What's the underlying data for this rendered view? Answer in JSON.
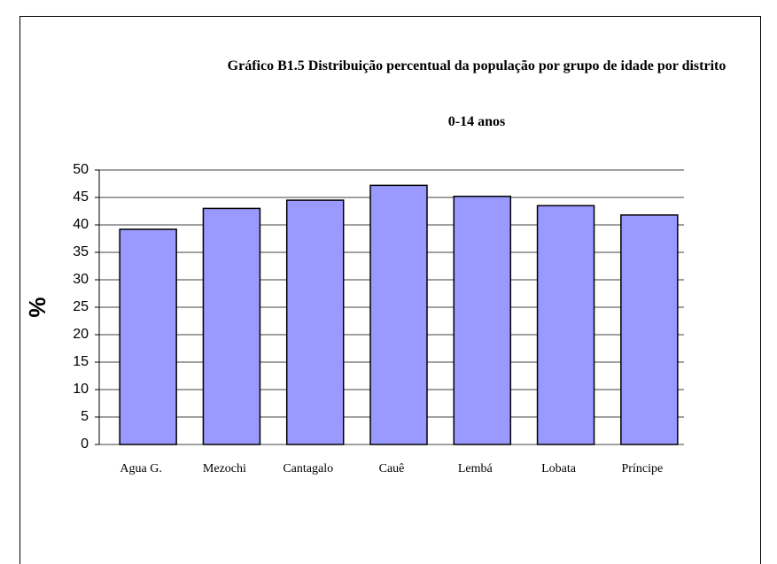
{
  "chart_data": {
    "type": "bar",
    "title": "Gráfico B1.5 Distribuição percentual da população por grupo de idade por distrito",
    "subtitle": "0-14 anos",
    "y_label": "%",
    "categories": [
      "Agua G.",
      "Mezochi",
      "Cantagalo",
      "Cauê",
      "Lembá",
      "Lobata",
      "Príncipe"
    ],
    "values": [
      39.2,
      43.0,
      44.5,
      47.2,
      45.2,
      43.5,
      41.8
    ],
    "color": "#9999ff",
    "ylim": [
      0,
      50
    ],
    "yticks": [
      0,
      5,
      10,
      15,
      20,
      25,
      30,
      35,
      40,
      45,
      50
    ],
    "grid": true
  }
}
